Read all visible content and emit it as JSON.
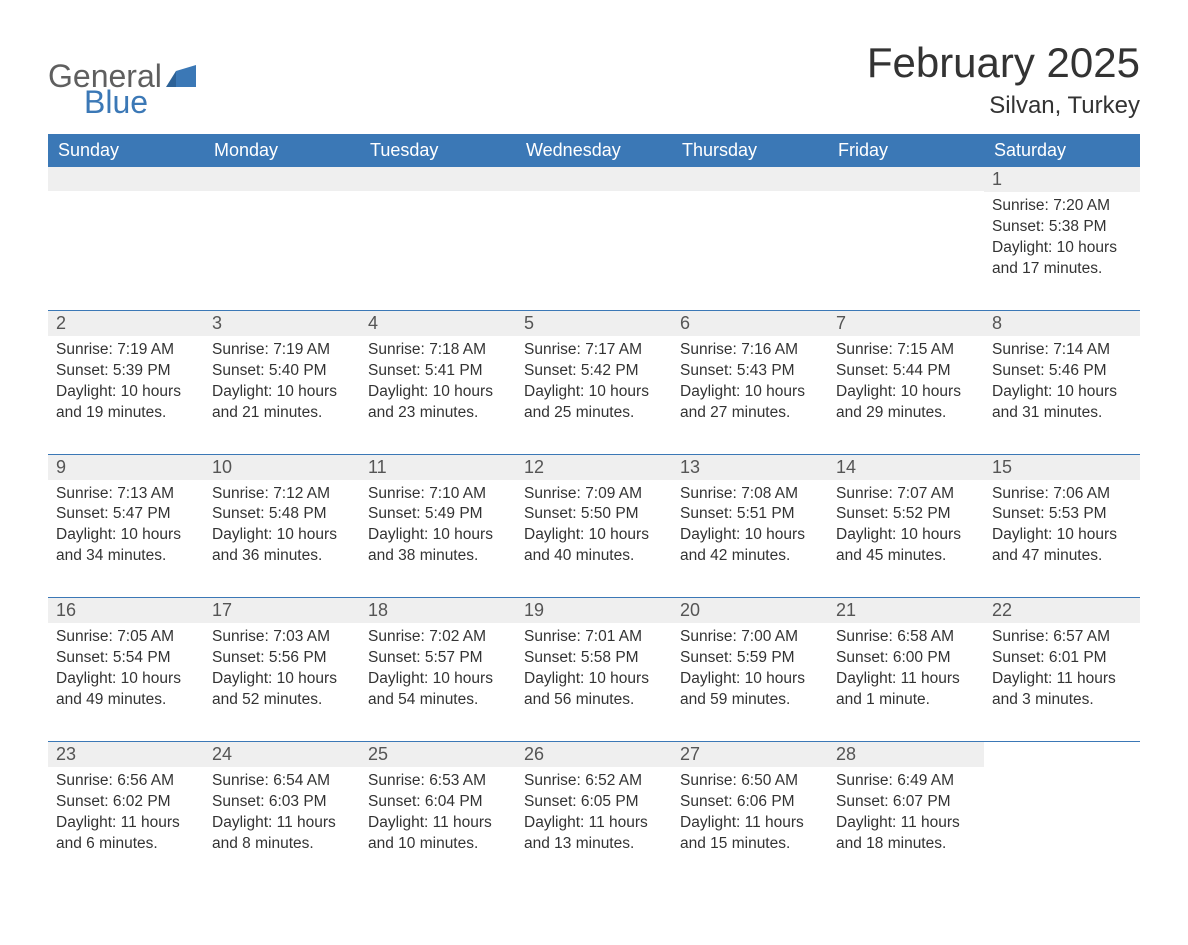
{
  "brand": {
    "name_part1": "General",
    "name_part2": "Blue",
    "logo_color": "#3b78b6",
    "logo_grey": "#5f5f5f"
  },
  "title": "February 2025",
  "location": "Silvan, Turkey",
  "colors": {
    "header_bg": "#3b78b6",
    "row_stripe": "#efefef",
    "border": "#3b78b6",
    "text": "#333333",
    "background": "#ffffff"
  },
  "typography": {
    "title_fontsize": 42,
    "location_fontsize": 24,
    "header_fontsize": 18,
    "daynum_fontsize": 18,
    "body_fontsize": 15.5,
    "font_family": "Segoe UI"
  },
  "day_headers": [
    "Sunday",
    "Monday",
    "Tuesday",
    "Wednesday",
    "Thursday",
    "Friday",
    "Saturday"
  ],
  "weeks": [
    [
      null,
      null,
      null,
      null,
      null,
      null,
      {
        "d": "1",
        "sunrise": "7:20 AM",
        "sunset": "5:38 PM",
        "daylight": "10 hours and 17 minutes."
      }
    ],
    [
      {
        "d": "2",
        "sunrise": "7:19 AM",
        "sunset": "5:39 PM",
        "daylight": "10 hours and 19 minutes."
      },
      {
        "d": "3",
        "sunrise": "7:19 AM",
        "sunset": "5:40 PM",
        "daylight": "10 hours and 21 minutes."
      },
      {
        "d": "4",
        "sunrise": "7:18 AM",
        "sunset": "5:41 PM",
        "daylight": "10 hours and 23 minutes."
      },
      {
        "d": "5",
        "sunrise": "7:17 AM",
        "sunset": "5:42 PM",
        "daylight": "10 hours and 25 minutes."
      },
      {
        "d": "6",
        "sunrise": "7:16 AM",
        "sunset": "5:43 PM",
        "daylight": "10 hours and 27 minutes."
      },
      {
        "d": "7",
        "sunrise": "7:15 AM",
        "sunset": "5:44 PM",
        "daylight": "10 hours and 29 minutes."
      },
      {
        "d": "8",
        "sunrise": "7:14 AM",
        "sunset": "5:46 PM",
        "daylight": "10 hours and 31 minutes."
      }
    ],
    [
      {
        "d": "9",
        "sunrise": "7:13 AM",
        "sunset": "5:47 PM",
        "daylight": "10 hours and 34 minutes."
      },
      {
        "d": "10",
        "sunrise": "7:12 AM",
        "sunset": "5:48 PM",
        "daylight": "10 hours and 36 minutes."
      },
      {
        "d": "11",
        "sunrise": "7:10 AM",
        "sunset": "5:49 PM",
        "daylight": "10 hours and 38 minutes."
      },
      {
        "d": "12",
        "sunrise": "7:09 AM",
        "sunset": "5:50 PM",
        "daylight": "10 hours and 40 minutes."
      },
      {
        "d": "13",
        "sunrise": "7:08 AM",
        "sunset": "5:51 PM",
        "daylight": "10 hours and 42 minutes."
      },
      {
        "d": "14",
        "sunrise": "7:07 AM",
        "sunset": "5:52 PM",
        "daylight": "10 hours and 45 minutes."
      },
      {
        "d": "15",
        "sunrise": "7:06 AM",
        "sunset": "5:53 PM",
        "daylight": "10 hours and 47 minutes."
      }
    ],
    [
      {
        "d": "16",
        "sunrise": "7:05 AM",
        "sunset": "5:54 PM",
        "daylight": "10 hours and 49 minutes."
      },
      {
        "d": "17",
        "sunrise": "7:03 AM",
        "sunset": "5:56 PM",
        "daylight": "10 hours and 52 minutes."
      },
      {
        "d": "18",
        "sunrise": "7:02 AM",
        "sunset": "5:57 PM",
        "daylight": "10 hours and 54 minutes."
      },
      {
        "d": "19",
        "sunrise": "7:01 AM",
        "sunset": "5:58 PM",
        "daylight": "10 hours and 56 minutes."
      },
      {
        "d": "20",
        "sunrise": "7:00 AM",
        "sunset": "5:59 PM",
        "daylight": "10 hours and 59 minutes."
      },
      {
        "d": "21",
        "sunrise": "6:58 AM",
        "sunset": "6:00 PM",
        "daylight": "11 hours and 1 minute."
      },
      {
        "d": "22",
        "sunrise": "6:57 AM",
        "sunset": "6:01 PM",
        "daylight": "11 hours and 3 minutes."
      }
    ],
    [
      {
        "d": "23",
        "sunrise": "6:56 AM",
        "sunset": "6:02 PM",
        "daylight": "11 hours and 6 minutes."
      },
      {
        "d": "24",
        "sunrise": "6:54 AM",
        "sunset": "6:03 PM",
        "daylight": "11 hours and 8 minutes."
      },
      {
        "d": "25",
        "sunrise": "6:53 AM",
        "sunset": "6:04 PM",
        "daylight": "11 hours and 10 minutes."
      },
      {
        "d": "26",
        "sunrise": "6:52 AM",
        "sunset": "6:05 PM",
        "daylight": "11 hours and 13 minutes."
      },
      {
        "d": "27",
        "sunrise": "6:50 AM",
        "sunset": "6:06 PM",
        "daylight": "11 hours and 15 minutes."
      },
      {
        "d": "28",
        "sunrise": "6:49 AM",
        "sunset": "6:07 PM",
        "daylight": "11 hours and 18 minutes."
      },
      null
    ]
  ],
  "labels": {
    "sunrise": "Sunrise:",
    "sunset": "Sunset:",
    "daylight": "Daylight:"
  }
}
